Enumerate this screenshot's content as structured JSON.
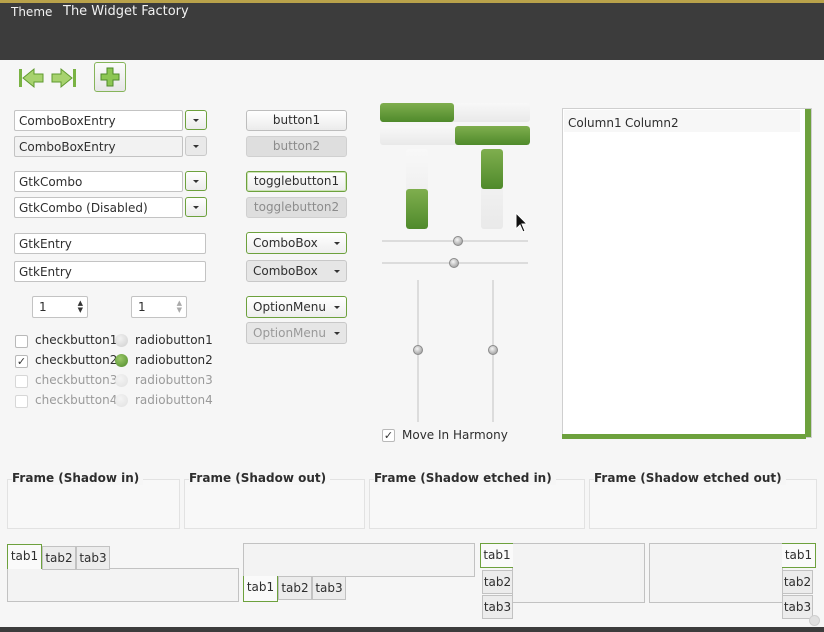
{
  "window": {
    "title": "The Widget Factory"
  },
  "menubar": {
    "items": [
      "Theme"
    ]
  },
  "toolbar": {
    "buttons": [
      {
        "name": "go-back-icon"
      },
      {
        "name": "go-forward-icon"
      },
      {
        "name": "add-icon"
      }
    ]
  },
  "comboentries": [
    {
      "value": "ComboBoxEntry",
      "enabled": true
    },
    {
      "value": "ComboBoxEntry",
      "enabled": false
    }
  ],
  "gtkcombos": [
    {
      "value": "GtkCombo",
      "enabled": true
    },
    {
      "value": "GtkCombo (Disabled)",
      "enabled": true
    }
  ],
  "entries": [
    "GtkEntry",
    "GtkEntry"
  ],
  "spinbuttons": [
    {
      "value": "1",
      "enabled": true
    },
    {
      "value": "1",
      "enabled": false
    }
  ],
  "checkbuttons": [
    {
      "label": "checkbutton1",
      "checked": false,
      "enabled": true
    },
    {
      "label": "checkbutton2",
      "checked": true,
      "enabled": true
    },
    {
      "label": "checkbutton3",
      "checked": false,
      "enabled": false
    },
    {
      "label": "checkbutton4",
      "checked": false,
      "enabled": false
    }
  ],
  "radiobuttons": [
    {
      "label": "radiobutton1",
      "selected": false,
      "enabled": true
    },
    {
      "label": "radiobutton2",
      "selected": true,
      "enabled": true
    },
    {
      "label": "radiobutton3",
      "selected": false,
      "enabled": false
    },
    {
      "label": "radiobutton4",
      "selected": false,
      "enabled": false
    }
  ],
  "buttons": [
    {
      "label": "button1",
      "enabled": true
    },
    {
      "label": "button2",
      "enabled": false
    }
  ],
  "togglebuttons": [
    {
      "label": "togglebutton1",
      "enabled": true
    },
    {
      "label": "togglebutton2",
      "enabled": false
    }
  ],
  "comboboxes": [
    {
      "value": "ComboBox",
      "enabled": true
    },
    {
      "value": "ComboBox",
      "enabled": false
    }
  ],
  "optionmenus": [
    {
      "value": "OptionMenu",
      "enabled": true
    },
    {
      "value": "OptionMenu",
      "enabled": false
    }
  ],
  "progress": {
    "horizontal": [
      0.5,
      0.5
    ],
    "vertical": [
      0.5,
      0.5
    ]
  },
  "scales": {
    "horizontal": [
      0.53,
      0.5
    ],
    "vertical": [
      0.5,
      0.5
    ]
  },
  "move_in_harmony": {
    "label": "Move In Harmony",
    "checked": true
  },
  "treeview": {
    "columns": [
      "Column1",
      "Column2"
    ]
  },
  "frames": [
    "Frame (Shadow in)",
    "Frame (Shadow out)",
    "Frame (Shadow etched in)",
    "Frame (Shadow etched out)"
  ],
  "notebooks": {
    "tabs": [
      "tab1",
      "tab2",
      "tab3"
    ]
  },
  "colors": {
    "accent": "#6da13d",
    "titlebar": "#3c3c3c",
    "background": "#f6f6f6"
  }
}
